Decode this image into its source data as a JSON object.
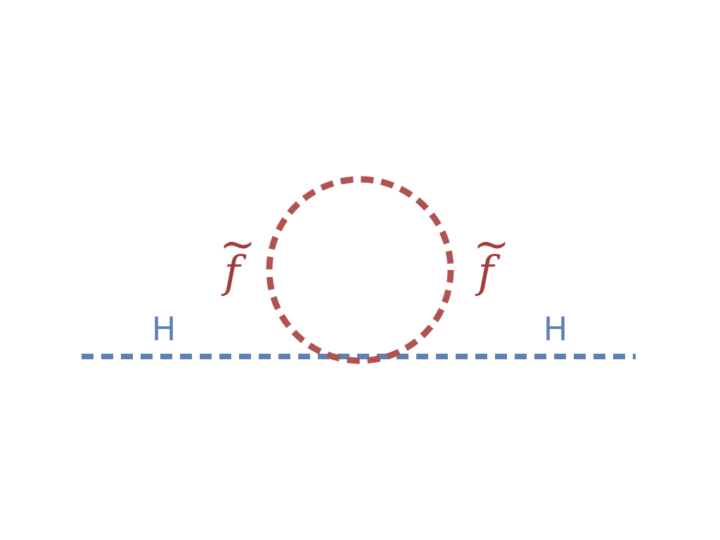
{
  "diagram": {
    "colors": {
      "higgs": "#5f80b6",
      "sfermion": "#b05252",
      "sfermion_label": "#a03c3c",
      "background": "#ffffff"
    },
    "labels": {
      "higgs_left": "H",
      "higgs_right": "H",
      "sfermion_left": "f",
      "sfermion_right": "f",
      "tilde_mark": "~"
    },
    "lines": {
      "higgs_propagator": "dashed",
      "sfermion_loop": "dashed"
    }
  }
}
